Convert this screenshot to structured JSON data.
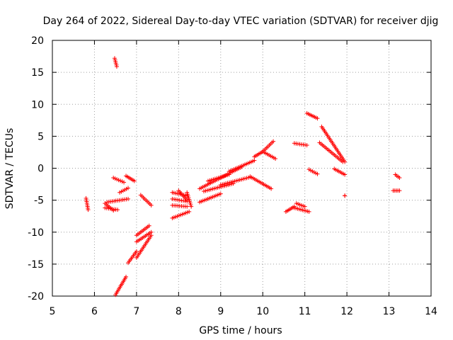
{
  "chart_data": {
    "type": "scatter",
    "title": "Day 264 of 2022, Sidereal Day-to-day VTEC variation (SDTVAR) for receiver djig",
    "xlabel": "GPS time / hours",
    "ylabel": "SDTVAR / TECUs",
    "xlim": [
      5,
      14
    ],
    "ylim": [
      -20,
      20
    ],
    "xticks": [
      5,
      6,
      7,
      8,
      9,
      10,
      11,
      12,
      13,
      14
    ],
    "yticks": [
      -20,
      -15,
      -10,
      -5,
      0,
      5,
      10,
      15,
      20
    ],
    "grid": true,
    "marker": "+",
    "color": "#ff0000",
    "segments": [
      {
        "x": [
          5.8,
          5.85
        ],
        "y": [
          -4.7,
          -6.5
        ]
      },
      {
        "x": [
          6.25,
          6.45
        ],
        "y": [
          -5.5,
          -6.6
        ]
      },
      {
        "x": [
          6.25,
          6.55
        ],
        "y": [
          -6.2,
          -6.5
        ]
      },
      {
        "x": [
          6.3,
          6.8
        ],
        "y": [
          -5.3,
          -4.8
        ]
      },
      {
        "x": [
          6.48,
          6.53
        ],
        "y": [
          17.2,
          15.9
        ]
      },
      {
        "x": [
          6.45,
          6.7
        ],
        "y": [
          -1.5,
          -2.2
        ]
      },
      {
        "x": [
          6.6,
          6.8
        ],
        "y": [
          -3.8,
          -3.1
        ]
      },
      {
        "x": [
          6.75,
          6.95
        ],
        "y": [
          -1.2,
          -2.0
        ]
      },
      {
        "x": [
          6.5,
          6.75
        ],
        "y": [
          -19.8,
          -17.0
        ]
      },
      {
        "x": [
          6.8,
          7.0
        ],
        "y": [
          -14.8,
          -13.0
        ]
      },
      {
        "x": [
          7.0,
          7.3
        ],
        "y": [
          -10.5,
          -9.0
        ]
      },
      {
        "x": [
          7.0,
          7.35
        ],
        "y": [
          -11.5,
          -10.0
        ]
      },
      {
        "x": [
          7.0,
          7.35
        ],
        "y": [
          -14.0,
          -10.5
        ]
      },
      {
        "x": [
          7.1,
          7.35
        ],
        "y": [
          -4.2,
          -5.8
        ]
      },
      {
        "x": [
          7.85,
          8.2
        ],
        "y": [
          -3.8,
          -4.3
        ]
      },
      {
        "x": [
          7.85,
          8.2
        ],
        "y": [
          -4.8,
          -5.2
        ]
      },
      {
        "x": [
          7.85,
          8.2
        ],
        "y": [
          -5.8,
          -6.0
        ]
      },
      {
        "x": [
          8.0,
          8.2
        ],
        "y": [
          -3.5,
          -5.0
        ]
      },
      {
        "x": [
          8.2,
          8.3
        ],
        "y": [
          -3.8,
          -6.0
        ]
      },
      {
        "x": [
          7.85,
          8.25
        ],
        "y": [
          -7.8,
          -6.8
        ]
      },
      {
        "x": [
          8.5,
          9.5
        ],
        "y": [
          -3.2,
          0.2
        ]
      },
      {
        "x": [
          8.5,
          9.0
        ],
        "y": [
          -5.3,
          -4.0
        ]
      },
      {
        "x": [
          8.6,
          9.3
        ],
        "y": [
          -3.6,
          -2.4
        ]
      },
      {
        "x": [
          8.7,
          9.2
        ],
        "y": [
          -2.0,
          -1.0
        ]
      },
      {
        "x": [
          9.0,
          9.7
        ],
        "y": [
          -2.6,
          -1.4
        ]
      },
      {
        "x": [
          9.2,
          9.8
        ],
        "y": [
          -0.5,
          1.2
        ]
      },
      {
        "x": [
          9.7,
          10.2
        ],
        "y": [
          -1.3,
          -3.2
        ]
      },
      {
        "x": [
          9.8,
          10.0
        ],
        "y": [
          1.8,
          2.6
        ]
      },
      {
        "x": [
          10.0,
          10.25
        ],
        "y": [
          2.6,
          4.2
        ]
      },
      {
        "x": [
          10.0,
          10.3
        ],
        "y": [
          2.6,
          1.5
        ]
      },
      {
        "x": [
          10.55,
          10.75
        ],
        "y": [
          -6.8,
          -6.0
        ]
      },
      {
        "x": [
          10.75,
          11.1
        ],
        "y": [
          -6.2,
          -6.8
        ]
      },
      {
        "x": [
          10.8,
          11.0
        ],
        "y": [
          -5.5,
          -6.0
        ]
      },
      {
        "x": [
          10.75,
          11.05
        ],
        "y": [
          3.9,
          3.6
        ]
      },
      {
        "x": [
          11.05,
          11.3
        ],
        "y": [
          8.6,
          7.8
        ]
      },
      {
        "x": [
          11.1,
          11.3
        ],
        "y": [
          -0.2,
          -0.9
        ]
      },
      {
        "x": [
          11.35,
          11.9
        ],
        "y": [
          4.0,
          1.0
        ]
      },
      {
        "x": [
          11.4,
          11.95
        ],
        "y": [
          6.5,
          1.0
        ]
      },
      {
        "x": [
          11.7,
          11.95
        ],
        "y": [
          -0.1,
          -1.0
        ]
      },
      {
        "x": [
          11.95,
          11.95
        ],
        "y": [
          -4.3,
          -4.3
        ]
      },
      {
        "x": [
          13.15,
          13.25
        ],
        "y": [
          -1.0,
          -1.5
        ]
      },
      {
        "x": [
          13.1,
          13.25
        ],
        "y": [
          -3.5,
          -3.5
        ]
      }
    ]
  }
}
